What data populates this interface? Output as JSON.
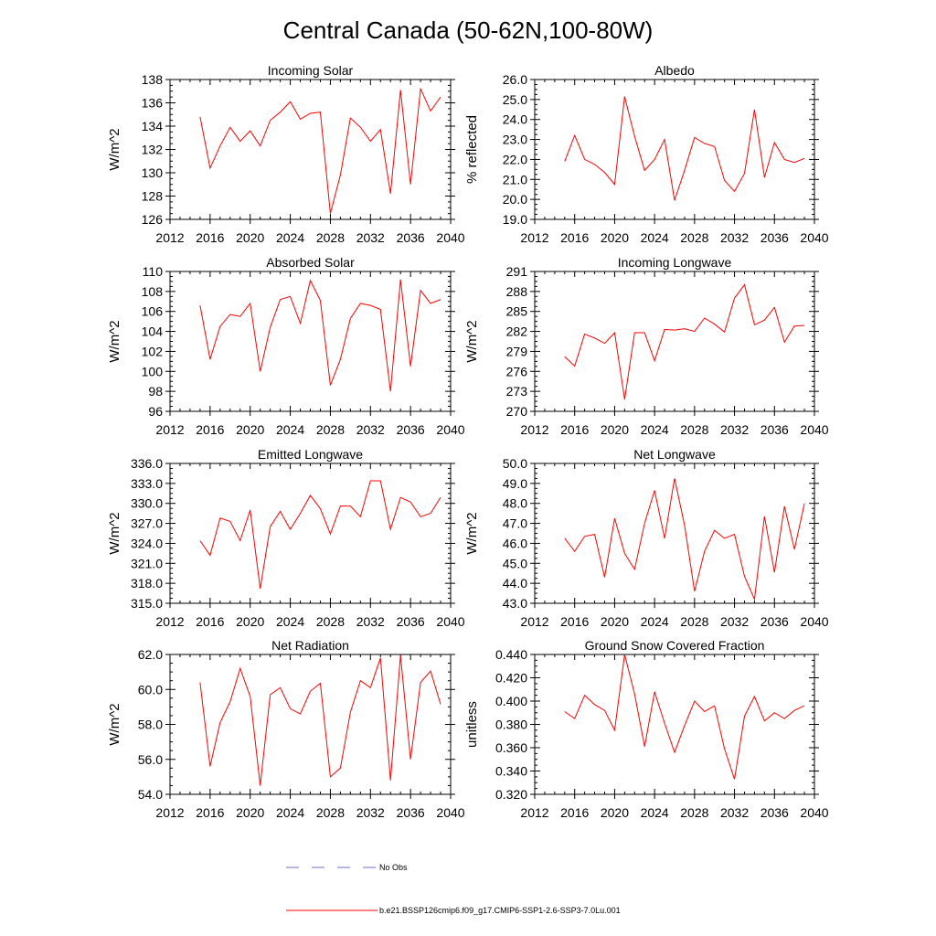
{
  "title": "Central Canada (50-62N,100-80W)",
  "legend": {
    "obs_label": "No Obs",
    "model_label": "b.e21.BSSP126cmip6.f09_g17.CMIP6-SSP1-2.6-SSP3-7.0Lu.001",
    "obs_color": "#6b6bd0",
    "model_color": "#ff0000"
  },
  "chart_data": [
    {
      "type": "line",
      "title": "Incoming Solar",
      "ylabel": "W/m^2",
      "xlabel": "",
      "xlim": [
        2012,
        2040
      ],
      "ylim": [
        126,
        138
      ],
      "xticks": [
        "2012",
        "2016",
        "2020",
        "2024",
        "2028",
        "2032",
        "2036",
        "2040"
      ],
      "yticks": [
        "126",
        "128",
        "130",
        "132",
        "134",
        "136",
        "138"
      ],
      "x": [
        2015,
        2016,
        2017,
        2018,
        2019,
        2020,
        2021,
        2022,
        2023,
        2024,
        2025,
        2026,
        2027,
        2028,
        2029,
        2030,
        2031,
        2032,
        2033,
        2034,
        2035,
        2036,
        2037,
        2038,
        2039
      ],
      "series": [
        {
          "name": "b.e21.BSSP126cmip6.f09_g17.CMIP6-SSP1-2.6-SSP3-7.0Lu.001",
          "color": "#ff0000",
          "values": [
            134.8,
            130.4,
            132.3,
            133.9,
            132.7,
            133.6,
            132.3,
            134.5,
            135.2,
            136.1,
            134.6,
            135.1,
            135.2,
            126.5,
            129.8,
            134.7,
            133.9,
            132.7,
            133.7,
            128.2,
            137.1,
            129.0,
            137.2,
            135.3,
            136.5
          ]
        }
      ]
    },
    {
      "type": "line",
      "title": "Albedo",
      "ylabel": "% reflected",
      "xlabel": "",
      "xlim": [
        2012,
        2040
      ],
      "ylim": [
        19.0,
        26.0
      ],
      "xticks": [
        "2012",
        "2016",
        "2020",
        "2024",
        "2028",
        "2032",
        "2036",
        "2040"
      ],
      "yticks": [
        "19.0",
        "20.0",
        "21.0",
        "22.0",
        "23.0",
        "24.0",
        "25.0",
        "26.0"
      ],
      "x": [
        2015,
        2016,
        2017,
        2018,
        2019,
        2020,
        2021,
        2022,
        2023,
        2024,
        2025,
        2026,
        2027,
        2028,
        2029,
        2030,
        2031,
        2032,
        2033,
        2034,
        2035,
        2036,
        2037,
        2038,
        2039
      ],
      "series": [
        {
          "name": "b.e21.BSSP126cmip6.f09_g17.CMIP6-SSP1-2.6-SSP3-7.0Lu.001",
          "color": "#ff0000",
          "values": [
            21.9,
            23.2,
            22.0,
            21.75,
            21.35,
            20.75,
            25.15,
            23.15,
            21.45,
            22.0,
            23.0,
            19.95,
            21.45,
            23.1,
            22.8,
            22.65,
            20.95,
            20.4,
            21.3,
            24.5,
            21.1,
            22.85,
            22.0,
            21.85,
            22.05
          ]
        }
      ]
    },
    {
      "type": "line",
      "title": "Absorbed Solar",
      "ylabel": "W/m^2",
      "xlabel": "",
      "xlim": [
        2012,
        2040
      ],
      "ylim": [
        96,
        110
      ],
      "xticks": [
        "2012",
        "2016",
        "2020",
        "2024",
        "2028",
        "2032",
        "2036",
        "2040"
      ],
      "yticks": [
        "96",
        "98",
        "100",
        "102",
        "104",
        "106",
        "108",
        "110"
      ],
      "x": [
        2015,
        2016,
        2017,
        2018,
        2019,
        2020,
        2021,
        2022,
        2023,
        2024,
        2025,
        2026,
        2027,
        2028,
        2029,
        2030,
        2031,
        2032,
        2033,
        2034,
        2035,
        2036,
        2037,
        2038,
        2039
      ],
      "series": [
        {
          "name": "b.e21.BSSP126cmip6.f09_g17.CMIP6-SSP1-2.6-SSP3-7.0Lu.001",
          "color": "#ff0000",
          "values": [
            106.6,
            101.2,
            104.5,
            105.7,
            105.5,
            106.8,
            100.0,
            104.4,
            107.2,
            107.5,
            104.8,
            109.1,
            107.1,
            98.6,
            101.2,
            105.3,
            106.8,
            106.6,
            106.2,
            98.0,
            109.2,
            100.5,
            108.1,
            106.8,
            107.2
          ]
        }
      ]
    },
    {
      "type": "line",
      "title": "Incoming Longwave",
      "ylabel": "W/m^2",
      "xlabel": "",
      "xlim": [
        2012,
        2040
      ],
      "ylim": [
        270,
        291
      ],
      "xticks": [
        "2012",
        "2016",
        "2020",
        "2024",
        "2028",
        "2032",
        "2036",
        "2040"
      ],
      "yticks": [
        "270",
        "273",
        "276",
        "279",
        "282",
        "285",
        "288",
        "291"
      ],
      "x": [
        2015,
        2016,
        2017,
        2018,
        2019,
        2020,
        2021,
        2022,
        2023,
        2024,
        2025,
        2026,
        2027,
        2028,
        2029,
        2030,
        2031,
        2032,
        2033,
        2034,
        2035,
        2036,
        2037,
        2038,
        2039
      ],
      "series": [
        {
          "name": "b.e21.BSSP126cmip6.f09_g17.CMIP6-SSP1-2.6-SSP3-7.0Lu.001",
          "color": "#ff0000",
          "values": [
            278.2,
            276.8,
            281.6,
            281.0,
            280.2,
            281.8,
            271.8,
            281.8,
            281.8,
            277.6,
            282.3,
            282.2,
            282.4,
            282.0,
            284.0,
            283.1,
            281.9,
            287.0,
            289.0,
            283.0,
            283.7,
            285.6,
            280.4,
            282.8,
            282.9
          ]
        }
      ]
    },
    {
      "type": "line",
      "title": "Emitted Longwave",
      "ylabel": "W/m^2",
      "xlabel": "",
      "xlim": [
        2012,
        2040
      ],
      "ylim": [
        315.0,
        336.0
      ],
      "xticks": [
        "2012",
        "2016",
        "2020",
        "2024",
        "2028",
        "2032",
        "2036",
        "2040"
      ],
      "yticks": [
        "315.0",
        "318.0",
        "321.0",
        "324.0",
        "327.0",
        "330.0",
        "333.0",
        "336.0"
      ],
      "x": [
        2015,
        2016,
        2017,
        2018,
        2019,
        2020,
        2021,
        2022,
        2023,
        2024,
        2025,
        2026,
        2027,
        2028,
        2029,
        2030,
        2031,
        2032,
        2033,
        2034,
        2035,
        2036,
        2037,
        2038,
        2039
      ],
      "series": [
        {
          "name": "b.e21.BSSP126cmip6.f09_g17.CMIP6-SSP1-2.6-SSP3-7.0Lu.001",
          "color": "#ff0000",
          "values": [
            324.4,
            322.2,
            327.8,
            327.3,
            324.4,
            329.0,
            317.2,
            326.5,
            328.8,
            326.1,
            328.5,
            331.2,
            329.2,
            325.4,
            329.6,
            329.6,
            328.0,
            333.4,
            333.4,
            326.1,
            330.9,
            330.2,
            328.0,
            328.5,
            330.9
          ]
        }
      ]
    },
    {
      "type": "line",
      "title": "Net Longwave",
      "ylabel": "W/m^2",
      "xlabel": "",
      "xlim": [
        2012,
        2040
      ],
      "ylim": [
        43.0,
        50.0
      ],
      "xticks": [
        "2012",
        "2016",
        "2020",
        "2024",
        "2028",
        "2032",
        "2036",
        "2040"
      ],
      "yticks": [
        "43.0",
        "44.0",
        "45.0",
        "46.0",
        "47.0",
        "48.0",
        "49.0",
        "50.0"
      ],
      "x": [
        2015,
        2016,
        2017,
        2018,
        2019,
        2020,
        2021,
        2022,
        2023,
        2024,
        2025,
        2026,
        2027,
        2028,
        2029,
        2030,
        2031,
        2032,
        2033,
        2034,
        2035,
        2036,
        2037,
        2038,
        2039
      ],
      "series": [
        {
          "name": "b.e21.BSSP126cmip6.f09_g17.CMIP6-SSP1-2.6-SSP3-7.0Lu.001",
          "color": "#ff0000",
          "values": [
            46.25,
            45.6,
            46.35,
            46.45,
            44.3,
            47.25,
            45.5,
            44.7,
            47.0,
            48.65,
            46.25,
            49.25,
            46.9,
            43.6,
            45.6,
            46.65,
            46.25,
            46.45,
            44.35,
            43.2,
            47.35,
            44.55,
            47.85,
            45.7,
            48.0
          ]
        }
      ]
    },
    {
      "type": "line",
      "title": "Net Radiation",
      "ylabel": "W/m^2",
      "xlabel": "",
      "xlim": [
        2012,
        2040
      ],
      "ylim": [
        54.0,
        62.0
      ],
      "xticks": [
        "2012",
        "2016",
        "2020",
        "2024",
        "2028",
        "2032",
        "2036",
        "2040"
      ],
      "yticks": [
        "54.0",
        "56.0",
        "58.0",
        "60.0",
        "62.0"
      ],
      "x": [
        2015,
        2016,
        2017,
        2018,
        2019,
        2020,
        2021,
        2022,
        2023,
        2024,
        2025,
        2026,
        2027,
        2028,
        2029,
        2030,
        2031,
        2032,
        2033,
        2034,
        2035,
        2036,
        2037,
        2038,
        2039
      ],
      "series": [
        {
          "name": "b.e21.BSSP126cmip6.f09_g17.CMIP6-SSP1-2.6-SSP3-7.0Lu.001",
          "color": "#ff0000",
          "values": [
            60.4,
            55.6,
            58.1,
            59.3,
            61.2,
            59.6,
            54.5,
            59.7,
            60.1,
            58.9,
            58.6,
            59.9,
            60.35,
            55.0,
            55.5,
            58.7,
            60.5,
            60.1,
            61.8,
            54.8,
            61.95,
            56.0,
            60.4,
            61.05,
            59.15
          ]
        }
      ]
    },
    {
      "type": "line",
      "title": "Ground Snow Covered Fraction",
      "ylabel": "unitless",
      "xlabel": "",
      "xlim": [
        2012,
        2040
      ],
      "ylim": [
        0.32,
        0.44
      ],
      "xticks": [
        "2012",
        "2016",
        "2020",
        "2024",
        "2028",
        "2032",
        "2036",
        "2040"
      ],
      "yticks": [
        "0.320",
        "0.340",
        "0.360",
        "0.380",
        "0.400",
        "0.420",
        "0.440"
      ],
      "x": [
        2015,
        2016,
        2017,
        2018,
        2019,
        2020,
        2021,
        2022,
        2023,
        2024,
        2025,
        2026,
        2027,
        2028,
        2029,
        2030,
        2031,
        2032,
        2033,
        2034,
        2035,
        2036,
        2037,
        2038,
        2039
      ],
      "series": [
        {
          "name": "b.e21.BSSP126cmip6.f09_g17.CMIP6-SSP1-2.6-SSP3-7.0Lu.001",
          "color": "#ff0000",
          "values": [
            0.391,
            0.385,
            0.405,
            0.397,
            0.392,
            0.375,
            0.44,
            0.406,
            0.361,
            0.408,
            0.381,
            0.356,
            0.379,
            0.4,
            0.391,
            0.396,
            0.359,
            0.333,
            0.387,
            0.404,
            0.383,
            0.39,
            0.385,
            0.392,
            0.396
          ]
        }
      ]
    }
  ]
}
